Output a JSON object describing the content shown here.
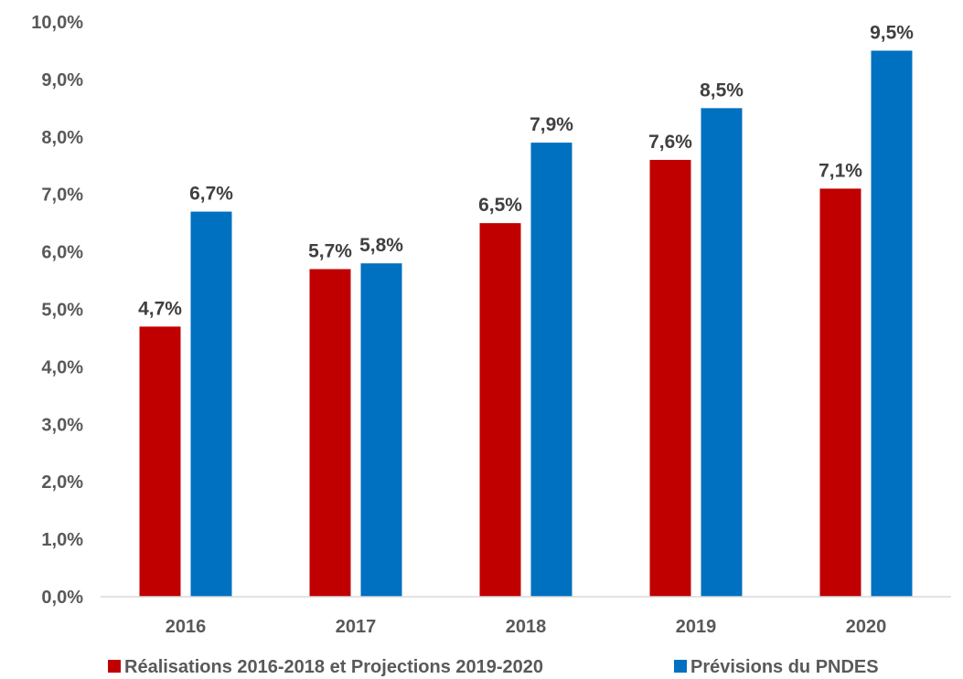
{
  "chart_data": {
    "type": "bar",
    "categories": [
      "2016",
      "2017",
      "2018",
      "2019",
      "2020"
    ],
    "series": [
      {
        "name": "Réalisations 2016-2018 et Projections 2019-2020",
        "values": [
          4.7,
          5.7,
          6.5,
          7.6,
          7.1
        ],
        "labels": [
          "4,7%",
          "5,7%",
          "6,5%",
          "7,6%",
          "7,1%"
        ],
        "color": "#C00000"
      },
      {
        "name": "Prévisions du PNDES",
        "values": [
          6.7,
          5.8,
          7.9,
          8.5,
          9.5
        ],
        "labels": [
          "6,7%",
          "5,8%",
          "7,9%",
          "8,5%",
          "9,5%"
        ],
        "color": "#0070C0"
      }
    ],
    "y_ticks": [
      "0,0%",
      "1,0%",
      "2,0%",
      "3,0%",
      "4,0%",
      "5,0%",
      "6,0%",
      "7,0%",
      "8,0%",
      "9,0%",
      "10,0%"
    ],
    "ylim": [
      0,
      10
    ],
    "grid": false,
    "legend_position": "bottom"
  }
}
